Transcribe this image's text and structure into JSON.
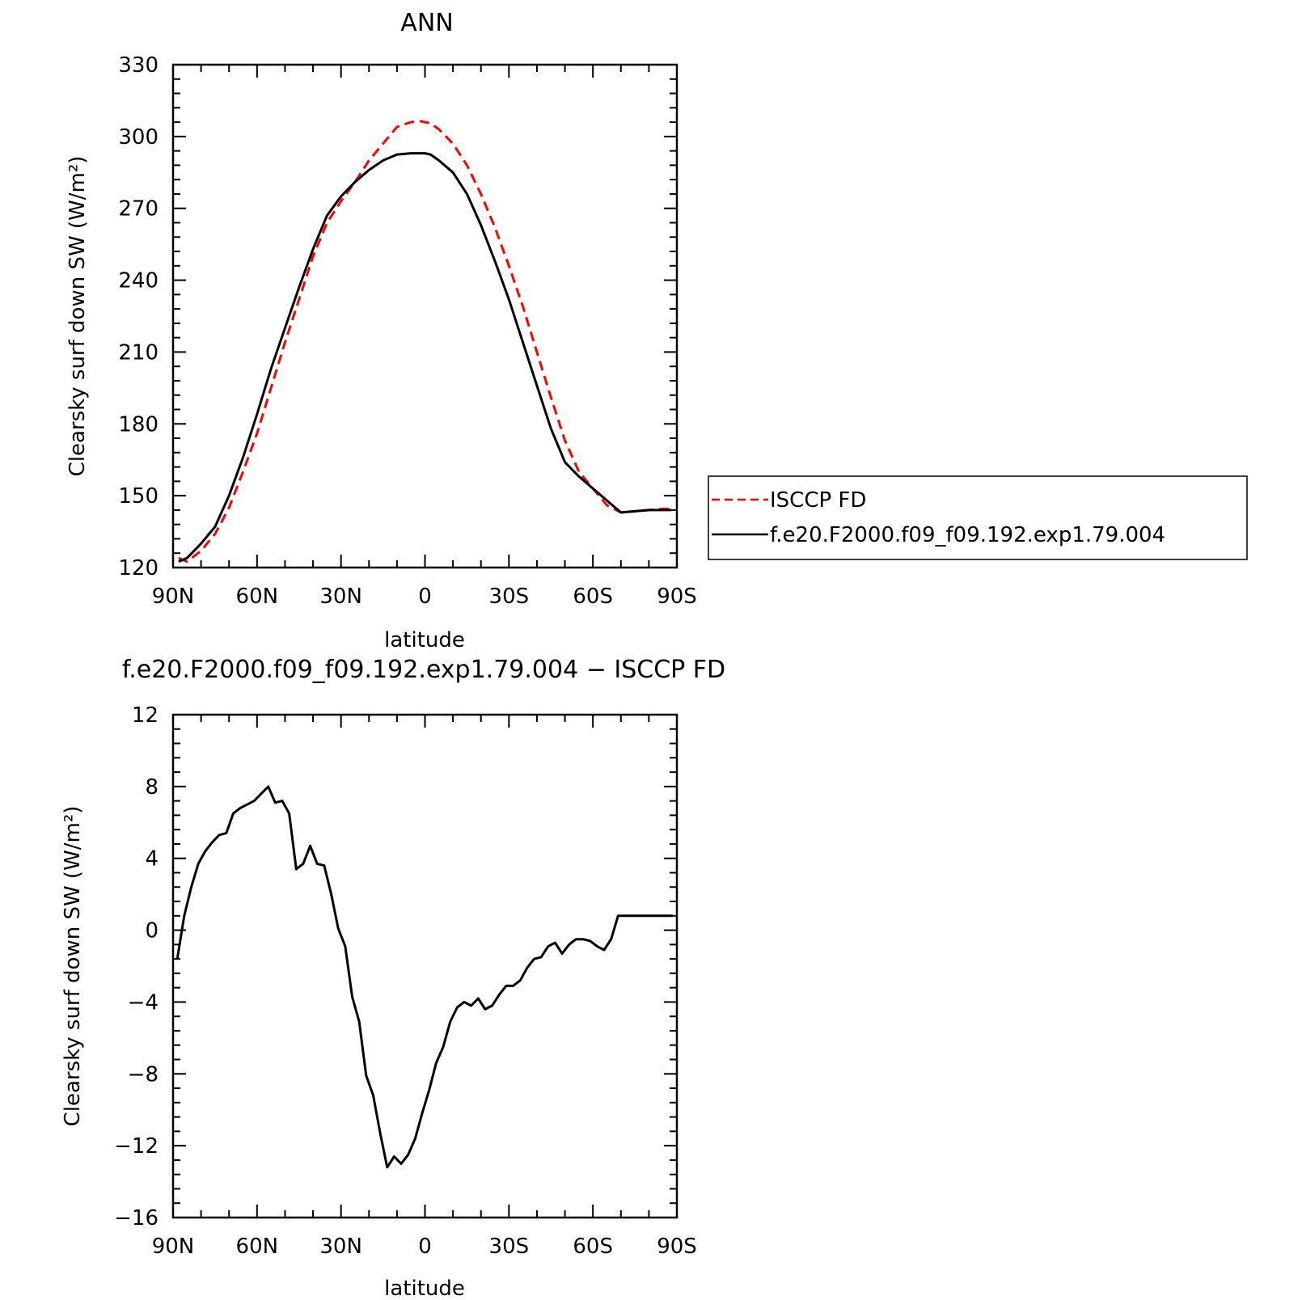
{
  "chart_data": [
    {
      "type": "line",
      "title": "ANN",
      "xlabel": "latitude",
      "ylabel": "Clearsky surf down SW (W/m²)",
      "xlim": [
        -90,
        90
      ],
      "ylim": [
        120,
        330
      ],
      "x_ticks": [
        {
          "value": -90,
          "label": "90N"
        },
        {
          "value": -60,
          "label": "60N"
        },
        {
          "value": -30,
          "label": "30N"
        },
        {
          "value": 0,
          "label": "0"
        },
        {
          "value": 30,
          "label": "30S"
        },
        {
          "value": 60,
          "label": "60S"
        },
        {
          "value": 90,
          "label": "90S"
        }
      ],
      "y_ticks": [
        {
          "value": 120,
          "label": "120"
        },
        {
          "value": 150,
          "label": "150"
        },
        {
          "value": 180,
          "label": "180"
        },
        {
          "value": 210,
          "label": "210"
        },
        {
          "value": 240,
          "label": "240"
        },
        {
          "value": 270,
          "label": "270"
        },
        {
          "value": 300,
          "label": "300"
        },
        {
          "value": 330,
          "label": "330"
        }
      ],
      "legend_position": "right",
      "series": [
        {
          "name": "ISCCP FD",
          "color": "#ff0000",
          "style": "dashed",
          "x": [
            -88,
            -85,
            -80,
            -75,
            -70,
            -65,
            -60,
            -55,
            -50,
            -45,
            -40,
            -35,
            -30,
            -25,
            -20,
            -15,
            -10,
            -5,
            -2,
            0,
            2,
            5,
            10,
            15,
            20,
            25,
            30,
            35,
            40,
            45,
            50,
            55,
            60,
            65,
            70,
            75,
            80,
            85,
            88
          ],
          "y": [
            124,
            122.5,
            127,
            134,
            145,
            160,
            176,
            195,
            214,
            232,
            250,
            264,
            273,
            281,
            290,
            297,
            304,
            306,
            306.5,
            306,
            305.5,
            303,
            297,
            288,
            276,
            262,
            246,
            229,
            210,
            191,
            173,
            160,
            153,
            146,
            143,
            143.5,
            144,
            144.5,
            144.5
          ],
          "y_note": "values indexed by latitude position"
        },
        {
          "name": "f.e20.F2000.f09_f09.192.exp1.79.004",
          "color": "#000000",
          "style": "solid",
          "x": [
            -88,
            -85,
            -80,
            -75,
            -70,
            -65,
            -60,
            -55,
            -50,
            -45,
            -40,
            -35,
            -30,
            -25,
            -20,
            -15,
            -10,
            -5,
            -2,
            0,
            2,
            5,
            10,
            15,
            20,
            25,
            30,
            35,
            40,
            45,
            50,
            55,
            60,
            65,
            70,
            75,
            80,
            85,
            88
          ],
          "y": [
            122.5,
            124,
            130,
            137,
            150,
            166,
            184,
            203,
            220,
            237,
            253,
            267,
            275,
            281,
            286,
            290,
            292.5,
            293,
            293,
            293,
            292.5,
            290,
            285,
            276,
            263,
            248,
            232,
            214,
            196,
            178,
            164,
            158,
            153,
            148,
            143,
            143.5,
            144,
            144,
            144
          ]
        }
      ]
    },
    {
      "type": "line",
      "title": "f.e20.F2000.f09_f09.192.exp1.79.004 − ISCCP FD",
      "xlabel": "latitude",
      "ylabel": "Clearsky surf down SW (W/m²)",
      "xlim": [
        -90,
        90
      ],
      "ylim": [
        -16,
        12
      ],
      "x_ticks": [
        {
          "value": -90,
          "label": "90N"
        },
        {
          "value": -60,
          "label": "60N"
        },
        {
          "value": -30,
          "label": "30N"
        },
        {
          "value": 0,
          "label": "0"
        },
        {
          "value": 30,
          "label": "30S"
        },
        {
          "value": 60,
          "label": "60S"
        },
        {
          "value": 90,
          "label": "90S"
        }
      ],
      "y_ticks": [
        {
          "value": -16,
          "label": "−16"
        },
        {
          "value": -12,
          "label": "−12"
        },
        {
          "value": -8,
          "label": "−8"
        },
        {
          "value": -4,
          "label": "−4"
        },
        {
          "value": 0,
          "label": "0"
        },
        {
          "value": 4,
          "label": "4"
        },
        {
          "value": 8,
          "label": "8"
        },
        {
          "value": 12,
          "label": "12"
        }
      ],
      "series": [
        {
          "color": "#000000",
          "style": "solid",
          "x": [
            -88.5,
            -86,
            -83.5,
            -81,
            -78.5,
            -76,
            -73.5,
            -71,
            -68.5,
            -66,
            -63.5,
            -61,
            -58.5,
            -56,
            -53.5,
            -51,
            -48.5,
            -46,
            -43.5,
            -41,
            -38.5,
            -36,
            -33.5,
            -31,
            -28.5,
            -26,
            -23.5,
            -21,
            -18.5,
            -16,
            -13.5,
            -11,
            -8.5,
            -6,
            -3.5,
            -1,
            1.5,
            4,
            6.5,
            9,
            11.5,
            14,
            16.5,
            19,
            21.5,
            24,
            26.5,
            29,
            31.5,
            34,
            36.5,
            39,
            41.5,
            44,
            46.5,
            49,
            51.5,
            54,
            56.5,
            59,
            61.5,
            64,
            66.5,
            69,
            71.5,
            74,
            76.5,
            79,
            81.5,
            84,
            86.5,
            88.5
          ],
          "y": [
            -1.6,
            0.8,
            2.4,
            3.7,
            4.4,
            4.9,
            5.3,
            5.4,
            6.5,
            6.8,
            7.0,
            7.2,
            7.6,
            8.0,
            7.1,
            7.2,
            6.5,
            3.4,
            3.7,
            4.7,
            3.7,
            3.6,
            2.0,
            0.1,
            -0.9,
            -3.7,
            -5.1,
            -8.1,
            -9.2,
            -11.3,
            -13.2,
            -12.6,
            -13.0,
            -12.5,
            -11.6,
            -10.2,
            -8.9,
            -7.4,
            -6.5,
            -5.1,
            -4.3,
            -4.0,
            -4.2,
            -3.8,
            -4.4,
            -4.2,
            -3.6,
            -3.1,
            -3.1,
            -2.8,
            -2.1,
            -1.6,
            -1.5,
            -0.9,
            -0.7,
            -1.3,
            -0.8,
            -0.5,
            -0.5,
            -0.6,
            -0.9,
            -1.1,
            -0.5,
            0.8,
            0.8,
            0.8,
            0.8,
            0.8,
            0.8,
            0.8,
            0.8,
            0.8
          ]
        }
      ]
    }
  ]
}
